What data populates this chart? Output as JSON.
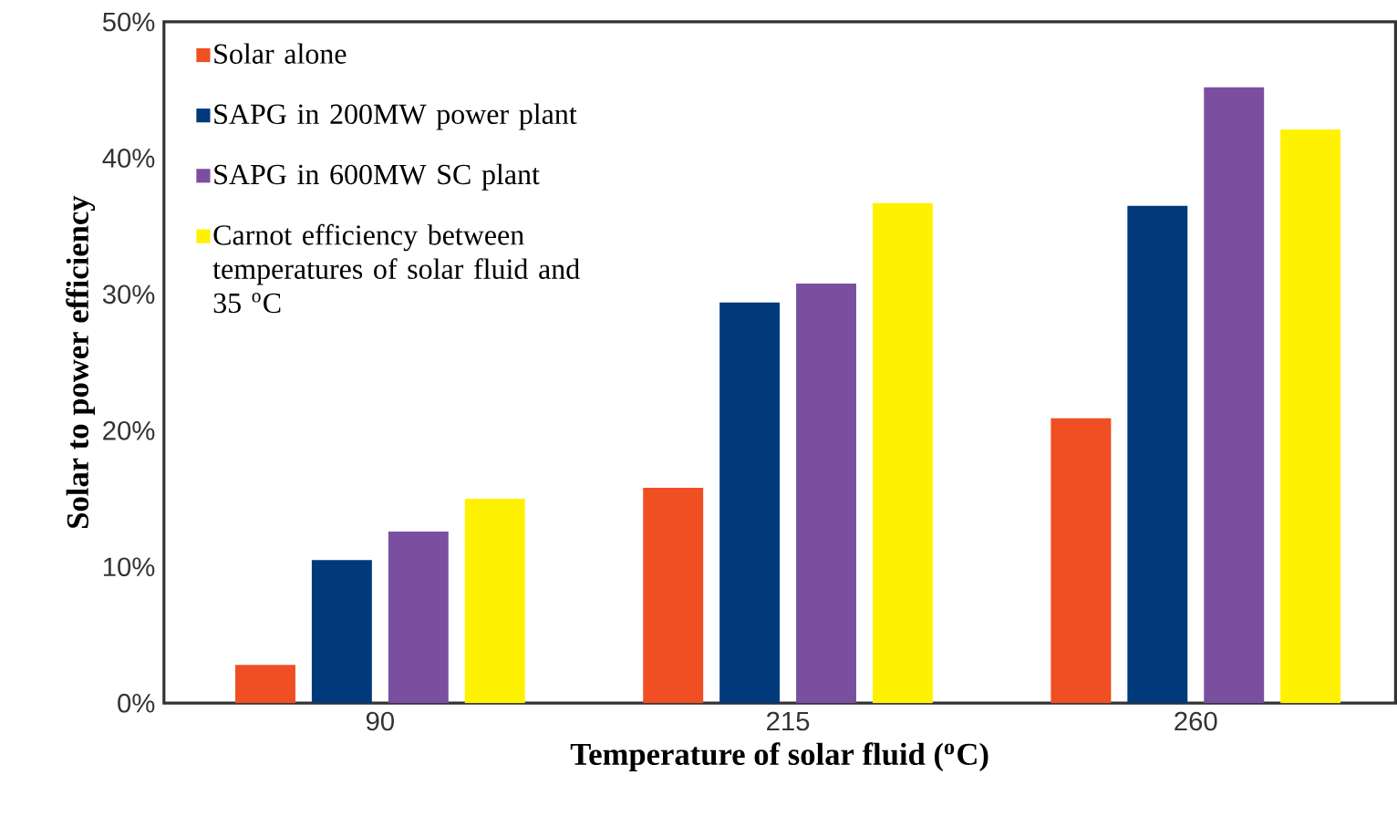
{
  "chart_data": {
    "type": "bar",
    "xlabel": "Temperature of solar fluid ($^{o}$C)",
    "ylabel": "Solar to power efficiency",
    "categories": [
      "90",
      "215",
      "260"
    ],
    "series": [
      {
        "name": "Solar alone",
        "color": "#f04e23",
        "values": [
          2.8,
          15.8,
          20.9
        ]
      },
      {
        "name": "SAPG in 200MW power plant",
        "color": "#003a7a",
        "values": [
          10.5,
          29.4,
          36.5
        ]
      },
      {
        "name": "SAPG in 600MW SC plant",
        "color": "#7b4fa0",
        "values": [
          12.6,
          30.8,
          45.2
        ]
      },
      {
        "name": "Carnot efficiency between temperatures of solar fluid and 35 $^{o}$C",
        "color": "#fff200",
        "values": [
          15.0,
          36.7,
          42.1
        ]
      }
    ],
    "ylim": [
      0,
      50
    ],
    "yticks": [
      {
        "value": 0,
        "label": "0%"
      },
      {
        "value": 10,
        "label": "10%"
      },
      {
        "value": 20,
        "label": "20%"
      },
      {
        "value": 30,
        "label": "30%"
      },
      {
        "value": 40,
        "label": "40%"
      },
      {
        "value": 50,
        "label": "50%"
      }
    ],
    "legend": "top left",
    "grid": false
  }
}
